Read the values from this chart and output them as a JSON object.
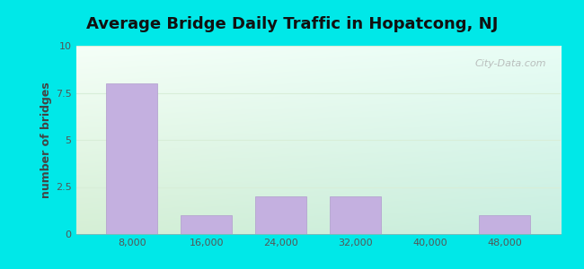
{
  "title": "Average Bridge Daily Traffic in Hopatcong, NJ",
  "ylabel": "number of bridges",
  "bar_positions": [
    8000,
    16000,
    24000,
    32000,
    40000,
    48000
  ],
  "bar_heights": [
    8,
    1,
    2,
    2,
    0,
    1
  ],
  "bar_color": "#c4b0e0",
  "bar_edgecolor": "#b09ccc",
  "xtick_labels": [
    "8,000",
    "16,000",
    "24,000",
    "32,000",
    "40,000",
    "48,000"
  ],
  "yticks": [
    0,
    2.5,
    5,
    7.5,
    10
  ],
  "ylim": [
    0,
    10
  ],
  "xlim": [
    2000,
    54000
  ],
  "outer_bg": "#00e8e8",
  "grid_color": "#d8eed8",
  "watermark": "City-Data.com",
  "title_fontsize": 13,
  "axis_label_fontsize": 9,
  "tick_fontsize": 8,
  "tick_color": "#555555",
  "ylabel_color": "#444444"
}
